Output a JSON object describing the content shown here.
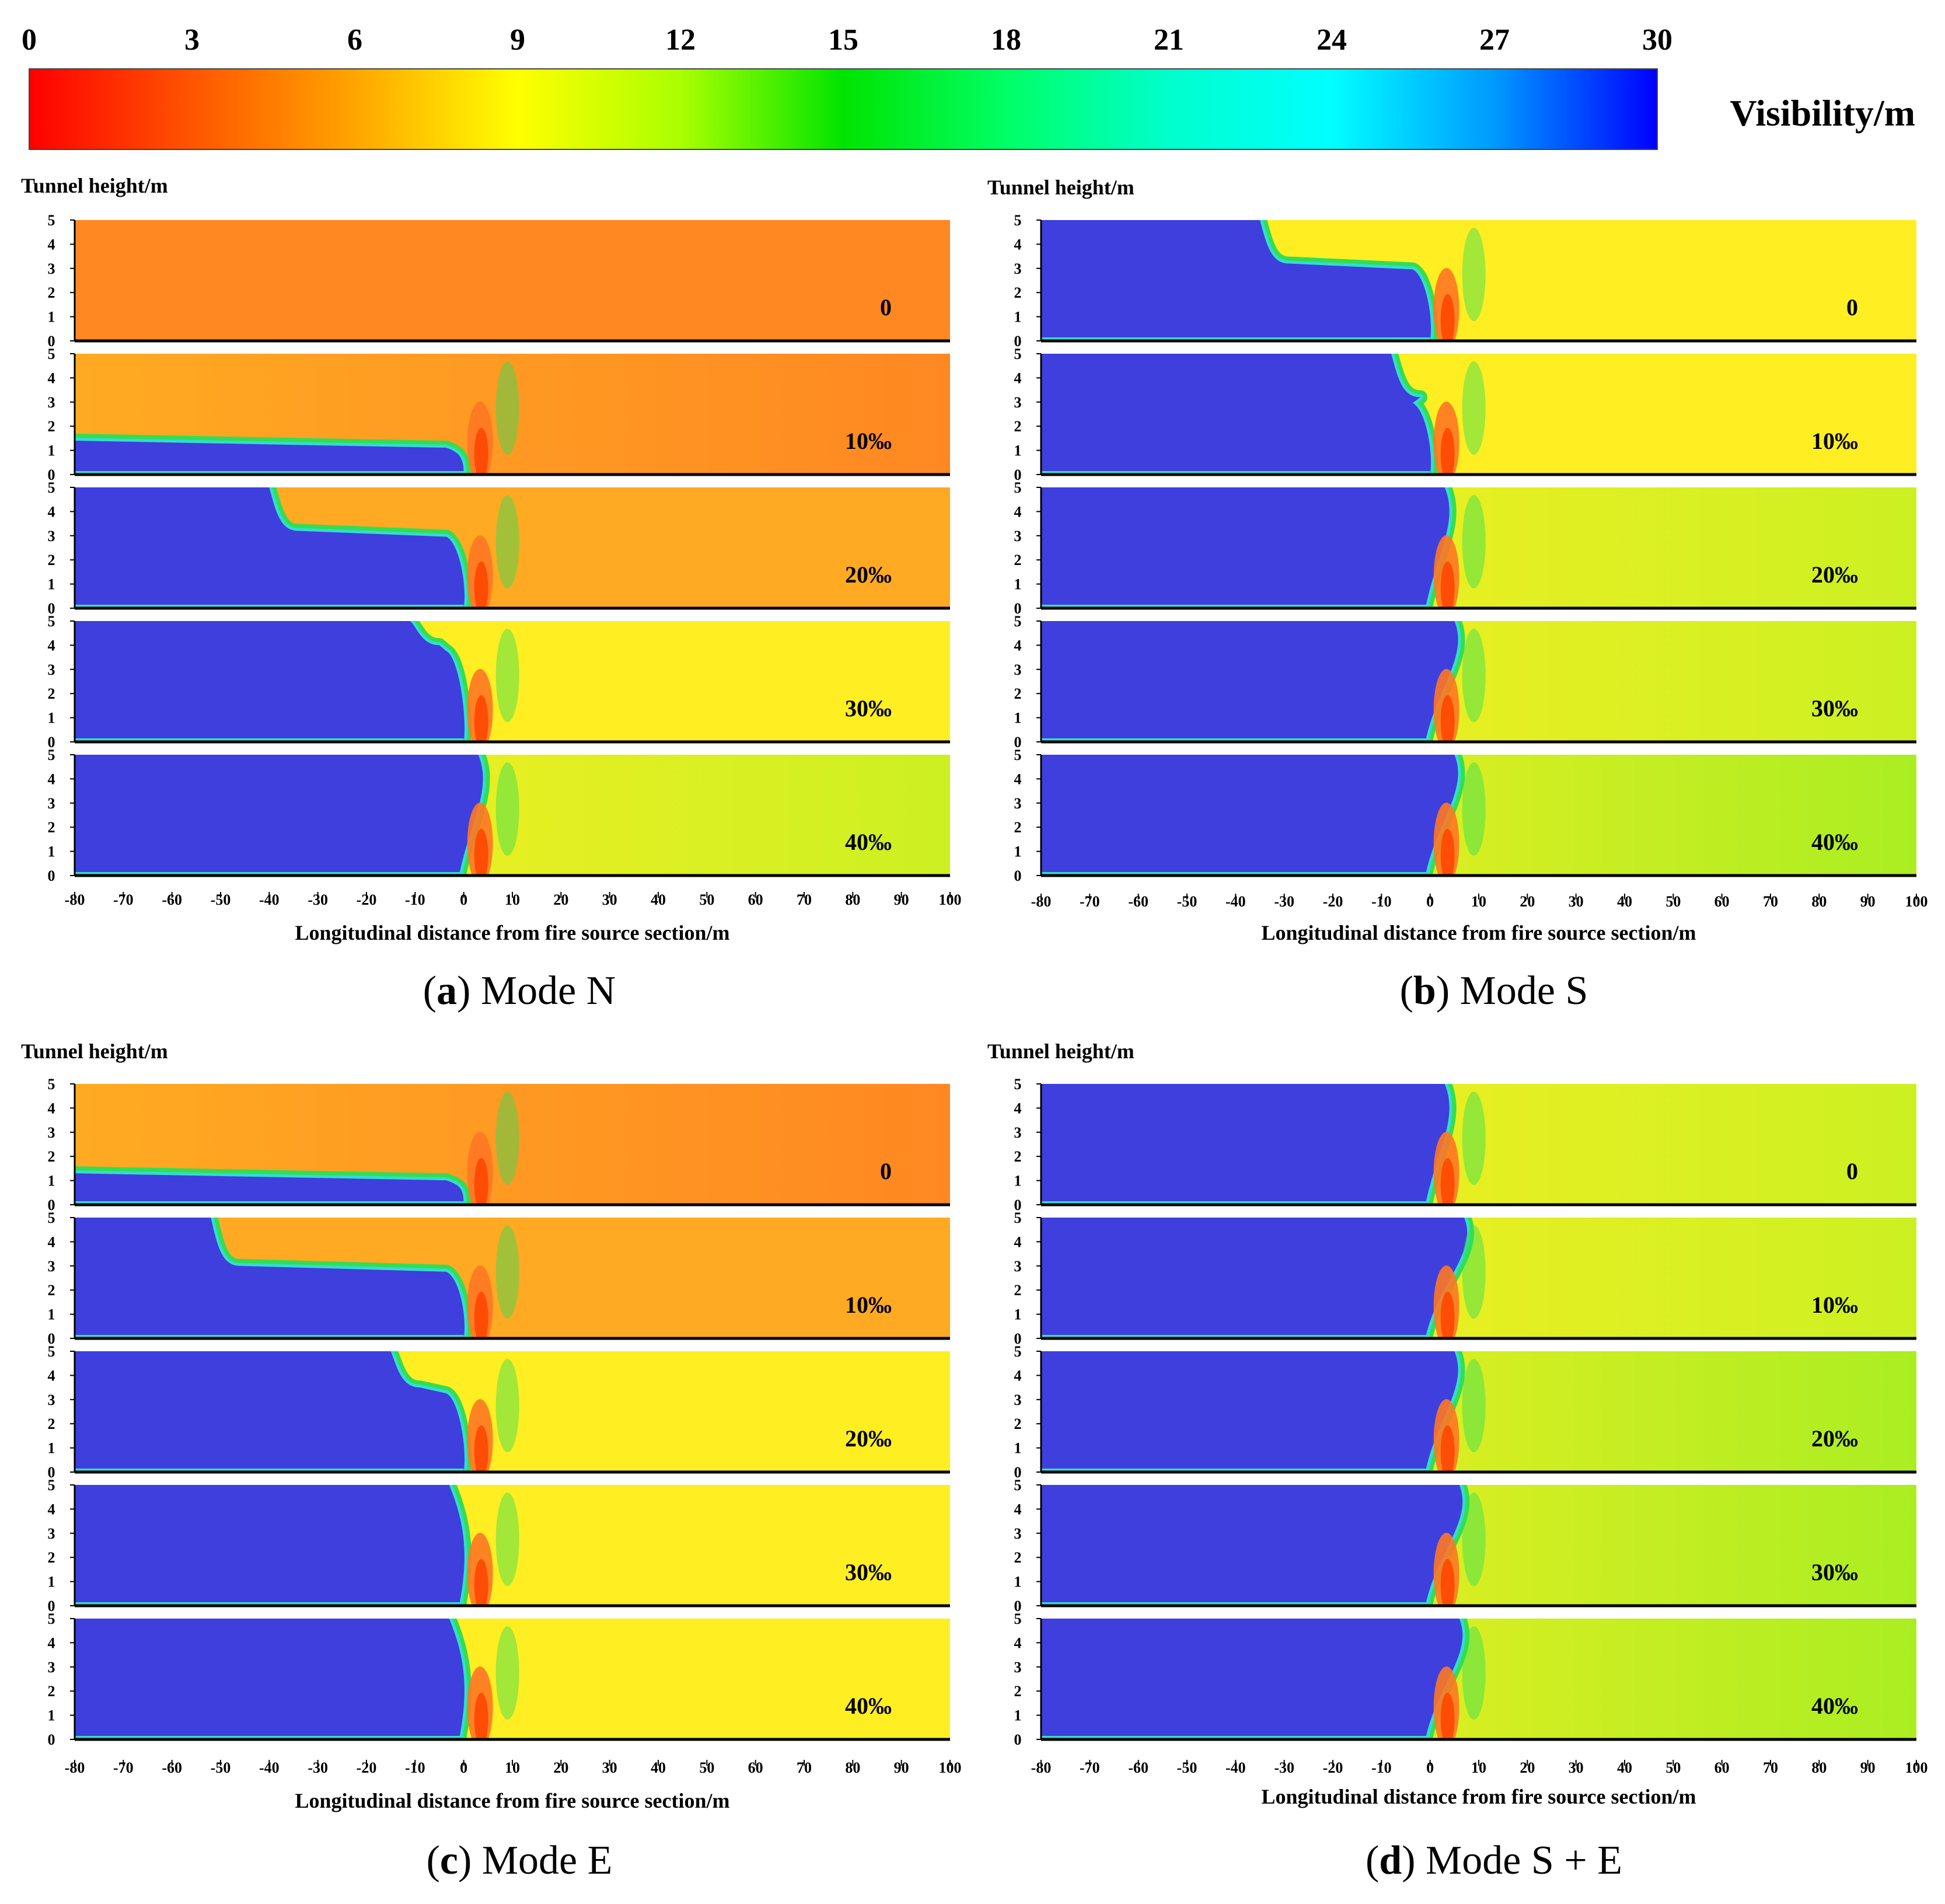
{
  "colorbar": {
    "label": "Visibility/m",
    "ticks": [
      "0",
      "3",
      "6",
      "9",
      "12",
      "15",
      "18",
      "21",
      "24",
      "27",
      "30"
    ],
    "range": [
      0,
      30
    ],
    "stops": [
      {
        "value": 0,
        "color": "#ff0000"
      },
      {
        "value": 3,
        "color": "#ff5500"
      },
      {
        "value": 6,
        "color": "#ffa500"
      },
      {
        "value": 9,
        "color": "#ffff00"
      },
      {
        "value": 12,
        "color": "#aaff00"
      },
      {
        "value": 15,
        "color": "#00e400"
      },
      {
        "value": 18,
        "color": "#00ff66"
      },
      {
        "value": 21,
        "color": "#00ffcc"
      },
      {
        "value": 24,
        "color": "#00ffff"
      },
      {
        "value": 27,
        "color": "#0099ff"
      },
      {
        "value": 30,
        "color": "#0000ff"
      }
    ]
  },
  "colors": {
    "clear": "#3f3fdd",
    "edge_cyan": "#33ddcc",
    "edge_green": "#33dd55",
    "hot_red": "#ff4400",
    "hot_orange": "#ff7722",
    "smoke_orange": "#ff8822",
    "smoke_amber": "#ffaa22",
    "smoke_yellow": "#ffee22",
    "smoke_yellowgreen": "#ccf022",
    "smoke_lime": "#aaee22"
  },
  "chart_data": [
    {
      "type": "heatmap",
      "caption_letter": "a",
      "caption_text": "Mode N",
      "ylabel": "Tunnel height/m",
      "xlabel": "Longitudinal distance from fire source section/m",
      "x_ticks": [
        "-80",
        "-70",
        "-60",
        "-50",
        "-40",
        "-30",
        "-20",
        "-10",
        "0",
        "10",
        "20",
        "30",
        "40",
        "50",
        "60",
        "70",
        "80",
        "90",
        "100"
      ],
      "y_ticks": [
        "0",
        "1",
        "2",
        "3",
        "4",
        "5"
      ],
      "xlim": [
        -80,
        100
      ],
      "ylim": [
        0,
        5
      ],
      "panels": [
        {
          "label": "0",
          "smoke_front_x": -80,
          "layer_height": 0,
          "downstream": "smoke_orange",
          "upstream": "smoke_orange"
        },
        {
          "label": "10‰",
          "smoke_front_x": -80,
          "layer_height": 1.4,
          "downstream": "smoke_orange",
          "upstream": "smoke_amber"
        },
        {
          "label": "20‰",
          "smoke_front_x": -40,
          "layer_height": 3.2,
          "downstream": "smoke_amber",
          "upstream": "smoke_amber"
        },
        {
          "label": "30‰",
          "smoke_front_x": -11,
          "layer_height": 4.0,
          "downstream": "smoke_yellow",
          "upstream": "smoke_yellow"
        },
        {
          "label": "40‰",
          "smoke_front_x": 3,
          "layer_height": 5,
          "downstream": "smoke_yellowgreen",
          "upstream": "smoke_yellow"
        }
      ]
    },
    {
      "type": "heatmap",
      "caption_letter": "b",
      "caption_text": "Mode S",
      "ylabel": "Tunnel height/m",
      "xlabel": "Longitudinal distance from fire source section/m",
      "x_ticks": [
        "-80",
        "-70",
        "-60",
        "-50",
        "-40",
        "-30",
        "-20",
        "-10",
        "0",
        "10",
        "20",
        "30",
        "40",
        "50",
        "60",
        "70",
        "80",
        "90",
        "100"
      ],
      "y_ticks": [
        "0",
        "1",
        "2",
        "3",
        "4",
        "5"
      ],
      "xlim": [
        -80,
        100
      ],
      "ylim": [
        0,
        5
      ],
      "panels": [
        {
          "label": "0",
          "smoke_front_x": -35,
          "layer_height": 3.2,
          "downstream": "smoke_yellow",
          "upstream": "smoke_yellow"
        },
        {
          "label": "10‰",
          "smoke_front_x": -8,
          "layer_height": 3.2,
          "downstream": "smoke_yellow",
          "upstream": "smoke_yellow"
        },
        {
          "label": "20‰",
          "smoke_front_x": 3,
          "layer_height": 5,
          "downstream": "smoke_yellowgreen",
          "upstream": "smoke_yellow"
        },
        {
          "label": "30‰",
          "smoke_front_x": 5,
          "layer_height": 5,
          "downstream": "smoke_yellowgreen",
          "upstream": "smoke_yellow"
        },
        {
          "label": "40‰",
          "smoke_front_x": 5,
          "layer_height": 5,
          "downstream": "smoke_lime",
          "upstream": "smoke_yellow"
        }
      ]
    },
    {
      "type": "heatmap",
      "caption_letter": "c",
      "caption_text": "Mode E",
      "ylabel": "Tunnel height/m",
      "xlabel": "Longitudinal distance from fire source section/m",
      "x_ticks": [
        "-80",
        "-70",
        "-60",
        "-50",
        "-40",
        "-30",
        "-20",
        "-10",
        "0",
        "10",
        "20",
        "30",
        "40",
        "50",
        "60",
        "70",
        "80",
        "90",
        "100"
      ],
      "y_ticks": [
        "0",
        "1",
        "2",
        "3",
        "4",
        "5"
      ],
      "xlim": [
        -80,
        100
      ],
      "ylim": [
        0,
        5
      ],
      "panels": [
        {
          "label": "0",
          "smoke_front_x": -80,
          "layer_height": 1.3,
          "downstream": "smoke_orange",
          "upstream": "smoke_amber"
        },
        {
          "label": "10‰",
          "smoke_front_x": -52,
          "layer_height": 3.0,
          "downstream": "smoke_amber",
          "upstream": "smoke_amber"
        },
        {
          "label": "20‰",
          "smoke_front_x": -15,
          "layer_height": 3.5,
          "downstream": "smoke_yellow",
          "upstream": "smoke_yellow"
        },
        {
          "label": "30‰",
          "smoke_front_x": -3,
          "layer_height": 5,
          "downstream": "smoke_yellow",
          "upstream": "smoke_yellow"
        },
        {
          "label": "40‰",
          "smoke_front_x": -3,
          "layer_height": 5,
          "downstream": "smoke_yellow",
          "upstream": "smoke_yellow"
        }
      ]
    },
    {
      "type": "heatmap",
      "caption_letter": "d",
      "caption_text": "Mode S + E",
      "ylabel": "Tunnel height/m",
      "xlabel": "Longitudinal distance from fire source section/m",
      "x_ticks": [
        "-80",
        "-70",
        "-60",
        "-50",
        "-40",
        "-30",
        "-20",
        "-10",
        "0",
        "10",
        "20",
        "30",
        "40",
        "50",
        "60",
        "70",
        "80",
        "90",
        "100"
      ],
      "y_ticks": [
        "0",
        "1",
        "2",
        "3",
        "4",
        "5"
      ],
      "xlim": [
        -80,
        100
      ],
      "ylim": [
        0,
        5
      ],
      "panels": [
        {
          "label": "0",
          "smoke_front_x": 3,
          "layer_height": 5,
          "downstream": "smoke_yellowgreen",
          "upstream": "smoke_yellow"
        },
        {
          "label": "10‰",
          "smoke_front_x": 7,
          "layer_height": 5,
          "downstream": "smoke_yellowgreen",
          "upstream": "smoke_yellow"
        },
        {
          "label": "20‰",
          "smoke_front_x": 5,
          "layer_height": 5,
          "downstream": "smoke_lime",
          "upstream": "smoke_yellow"
        },
        {
          "label": "30‰",
          "smoke_front_x": 6,
          "layer_height": 5,
          "downstream": "smoke_lime",
          "upstream": "smoke_yellow"
        },
        {
          "label": "40‰",
          "smoke_front_x": 6,
          "layer_height": 5,
          "downstream": "smoke_lime",
          "upstream": "smoke_yellow"
        }
      ]
    }
  ]
}
